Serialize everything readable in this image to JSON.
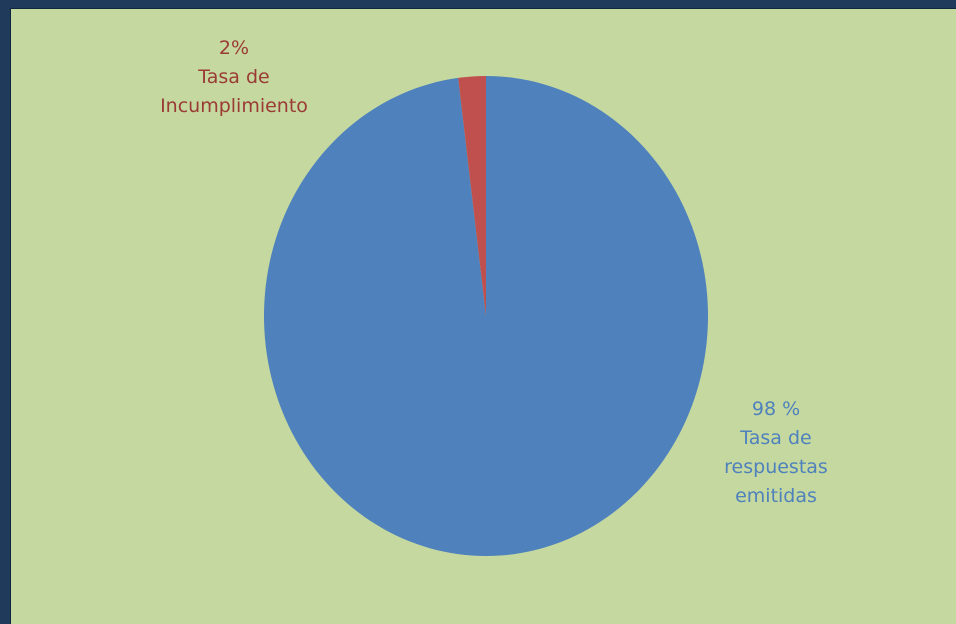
{
  "chart_data": {
    "type": "pie",
    "title": "",
    "slices": [
      {
        "name": "Tasa de Incumplimiento",
        "value": 2,
        "percent_label": "2%",
        "label_lines": [
          "Tasa de",
          "Incumplimiento"
        ],
        "color": "#c0504d",
        "label_color": "#9b3b35"
      },
      {
        "name": "Tasa de respuestas emitidas",
        "value": 98,
        "percent_label": "98 %",
        "label_lines": [
          "Tasa de",
          "respuestas",
          "emitidas"
        ],
        "color": "#4f81bd",
        "label_color": "#4f81bd"
      }
    ],
    "legend": "none",
    "start_angle_deg": 0,
    "direction": "counterclockwise"
  },
  "colors": {
    "background": "#c4d89f",
    "frame": "#1f3a5a"
  }
}
